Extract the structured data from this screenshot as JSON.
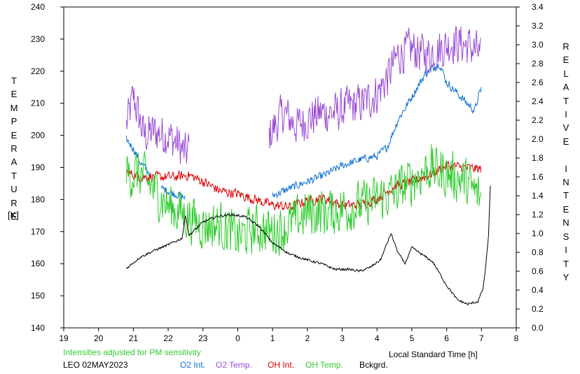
{
  "chart_data": {
    "type": "line",
    "x_axis": {
      "label": "Local Standard Time [h]",
      "ticks": [
        "19",
        "20",
        "21",
        "22",
        "23",
        "0",
        "1",
        "2",
        "3",
        "4",
        "5",
        "6",
        "7",
        "8"
      ],
      "range_hours": [
        19,
        32
      ]
    },
    "y_left": {
      "label_letters": [
        "T",
        "E",
        "M",
        "P",
        "E",
        "R",
        "A",
        "T",
        "U",
        "R",
        "E"
      ],
      "unit": "[K]",
      "ticks": [
        140,
        150,
        160,
        170,
        180,
        190,
        200,
        210,
        220,
        230,
        240
      ],
      "range": [
        140,
        240
      ]
    },
    "y_right": {
      "label_letters": [
        "R",
        "E",
        "L",
        "A",
        "T",
        "I",
        "V",
        "E",
        "",
        "I",
        "N",
        "T",
        "E",
        "N",
        "S",
        "I",
        "T",
        "Y"
      ],
      "ticks": [
        "0.0",
        "0.2",
        "0.4",
        "0.6",
        "0.8",
        "1.0",
        "1.2",
        "1.4",
        "1.6",
        "1.8",
        "2.0",
        "2.2",
        "2.4",
        "2.6",
        "2.8",
        "3.0",
        "3.2",
        "3.4"
      ],
      "range": [
        0.0,
        3.4
      ]
    },
    "note": "Intensities adjusted for PM sensitivity",
    "station_date": "LEO 02MAY2023",
    "legend": [
      {
        "name": "O2 Int.",
        "color": "#0b6fd8"
      },
      {
        "name": "O2 Temp.",
        "color": "#9a4bd6"
      },
      {
        "name": "OH Int.",
        "color": "#e00000"
      },
      {
        "name": "OH Temp.",
        "color": "#2ecc2e"
      },
      {
        "name": "Bckgrd.",
        "color": "#000000"
      }
    ],
    "series": [
      {
        "key": "o2_temp",
        "axis": "left",
        "color": "#9a4bd6",
        "noise": 6,
        "segments": [
          {
            "points": [
              [
                20.8,
                203
              ],
              [
                21.0,
                212
              ],
              [
                21.3,
                200
              ],
              [
                21.6,
                201
              ],
              [
                22.0,
                200
              ],
              [
                22.3,
                197
              ],
              [
                22.5,
                194
              ],
              [
                22.6,
                196
              ]
            ]
          },
          {
            "points": [
              [
                24.9,
                200
              ],
              [
                25.3,
                207
              ],
              [
                25.7,
                203
              ],
              [
                26.0,
                205
              ],
              [
                26.4,
                207
              ],
              [
                26.8,
                207
              ],
              [
                27.2,
                209
              ],
              [
                27.6,
                210
              ],
              [
                28.0,
                213
              ],
              [
                28.3,
                218
              ],
              [
                28.6,
                225
              ],
              [
                29.0,
                227
              ],
              [
                29.4,
                225
              ],
              [
                29.8,
                227
              ],
              [
                30.2,
                229
              ],
              [
                30.6,
                228
              ],
              [
                30.9,
                226
              ],
              [
                31.0,
                223
              ]
            ]
          }
        ]
      },
      {
        "key": "o2_int",
        "axis": "right",
        "color": "#0b6fd8",
        "noise": 0.04,
        "segments": [
          {
            "points": [
              [
                20.8,
                2.0
              ],
              [
                21.0,
                1.9
              ],
              [
                21.2,
                1.75
              ],
              [
                21.5,
                1.62
              ]
            ]
          },
          {
            "points": [
              [
                21.8,
                1.48
              ],
              [
                22.2,
                1.42
              ],
              [
                22.5,
                1.38
              ]
            ]
          },
          {
            "points": [
              [
                25.0,
                1.4
              ],
              [
                25.5,
                1.48
              ],
              [
                26.0,
                1.55
              ],
              [
                26.5,
                1.62
              ],
              [
                27.0,
                1.72
              ],
              [
                27.5,
                1.78
              ],
              [
                28.0,
                1.82
              ],
              [
                28.3,
                1.92
              ],
              [
                28.6,
                2.2
              ],
              [
                29.0,
                2.45
              ],
              [
                29.4,
                2.7
              ],
              [
                29.8,
                2.8
              ],
              [
                30.0,
                2.6
              ],
              [
                30.4,
                2.45
              ],
              [
                30.8,
                2.3
              ],
              [
                31.0,
                2.55
              ]
            ]
          }
        ]
      },
      {
        "key": "oh_int",
        "axis": "right",
        "color": "#e00000",
        "noise": 0.05,
        "segments": [
          {
            "points": [
              [
                20.8,
                1.65
              ],
              [
                21.2,
                1.6
              ],
              [
                21.7,
                1.6
              ],
              [
                22.2,
                1.6
              ],
              [
                22.6,
                1.62
              ],
              [
                23.0,
                1.55
              ],
              [
                23.5,
                1.45
              ],
              [
                24.0,
                1.42
              ],
              [
                24.5,
                1.36
              ],
              [
                25.0,
                1.3
              ],
              [
                25.5,
                1.28
              ],
              [
                26.0,
                1.35
              ],
              [
                26.5,
                1.37
              ],
              [
                27.0,
                1.3
              ],
              [
                27.5,
                1.3
              ],
              [
                28.0,
                1.37
              ],
              [
                28.5,
                1.5
              ],
              [
                29.0,
                1.55
              ],
              [
                29.5,
                1.62
              ],
              [
                30.0,
                1.72
              ],
              [
                30.5,
                1.7
              ],
              [
                31.0,
                1.68
              ]
            ]
          }
        ]
      },
      {
        "key": "oh_temp",
        "axis": "left",
        "color": "#2ecc2e",
        "noise": 7,
        "segments": [
          {
            "points": [
              [
                20.8,
                188
              ],
              [
                21.2,
                188
              ],
              [
                21.6,
                183
              ],
              [
                22.0,
                178
              ],
              [
                22.5,
                175
              ],
              [
                23.0,
                172
              ],
              [
                23.5,
                172
              ],
              [
                24.0,
                168
              ],
              [
                24.5,
                171
              ],
              [
                25.0,
                170
              ],
              [
                25.5,
                172
              ],
              [
                26.0,
                176
              ],
              [
                26.5,
                176
              ],
              [
                27.0,
                177
              ],
              [
                27.5,
                178
              ],
              [
                28.0,
                180
              ],
              [
                28.5,
                182
              ],
              [
                29.0,
                186
              ],
              [
                29.5,
                190
              ],
              [
                30.0,
                188
              ],
              [
                30.5,
                186
              ],
              [
                31.0,
                180
              ]
            ]
          }
        ]
      },
      {
        "key": "bckgrd",
        "axis": "right",
        "color": "#000000",
        "noise": 0.012,
        "segments": [
          {
            "points": [
              [
                20.8,
                0.63
              ],
              [
                21.2,
                0.75
              ],
              [
                21.6,
                0.82
              ],
              [
                22.0,
                0.88
              ],
              [
                22.4,
                0.95
              ],
              [
                22.5,
                1.2
              ],
              [
                22.6,
                0.98
              ],
              [
                23.0,
                1.12
              ],
              [
                23.4,
                1.18
              ],
              [
                23.8,
                1.2
              ],
              [
                24.2,
                1.18
              ],
              [
                24.6,
                1.08
              ],
              [
                25.0,
                0.9
              ],
              [
                25.5,
                0.78
              ],
              [
                26.0,
                0.72
              ],
              [
                26.4,
                0.68
              ],
              [
                26.8,
                0.62
              ],
              [
                27.2,
                0.62
              ],
              [
                27.5,
                0.6
              ],
              [
                27.8,
                0.64
              ],
              [
                28.1,
                0.72
              ],
              [
                28.4,
                1.0
              ],
              [
                28.6,
                0.8
              ],
              [
                28.8,
                0.68
              ],
              [
                29.0,
                0.85
              ],
              [
                29.6,
                0.7
              ],
              [
                30.0,
                0.45
              ],
              [
                30.3,
                0.3
              ],
              [
                30.6,
                0.25
              ],
              [
                30.9,
                0.28
              ],
              [
                31.05,
                0.42
              ],
              [
                31.1,
                0.58
              ],
              [
                31.2,
                0.95
              ],
              [
                31.27,
                1.62
              ]
            ]
          }
        ]
      }
    ]
  }
}
